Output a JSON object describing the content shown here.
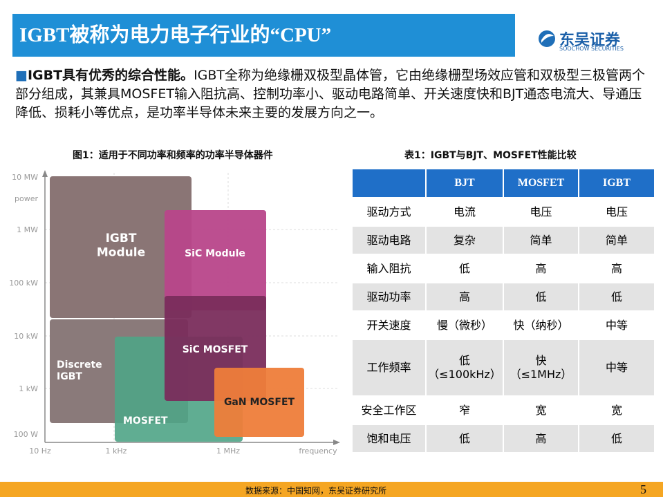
{
  "header": {
    "title": "IGBT被称为电力电子行业的“CPU”",
    "logo_name": "东吴证券",
    "logo_sub": "SOOCHOW SECURITIES"
  },
  "intro": {
    "lead": "IGBT具有优秀的综合性能。",
    "text": "IGBT全称为绝缘栅双极型晶体管，它由绝缘栅型场效应管和双极型三极管两个部分组成，其兼具MOSFET输入阻抗高、控制功率小、驱动电路简单、开关速度快和BJT通态电流大、导通压降低、损耗小等优点，是功率半导体未来主要的发展方向之一。"
  },
  "figure": {
    "caption": "图1：适用于不同功率和频率的功率半导体器件",
    "y_labels": [
      "10 MW",
      "power",
      "1 MW",
      "100 kW",
      "10 kW",
      "1 kW",
      "100 W"
    ],
    "x_labels": [
      "10 Hz",
      "1 kHz",
      "1 MHz",
      "frequency"
    ],
    "regions": [
      "IGBT\nModule",
      "Discrete\nIGBT",
      "MOSFET",
      "SiC Module",
      "SiC MOSFET",
      "GaN MOSFET"
    ]
  },
  "table": {
    "caption": "表1：IGBT与BJT、MOSFET性能比较",
    "header": [
      "BJT",
      "MOSFET",
      "IGBT"
    ],
    "rows": [
      [
        "驱动方式",
        "电流",
        "电压",
        "电压"
      ],
      [
        "驱动电路",
        "复杂",
        "简单",
        "简单"
      ],
      [
        "输入阻抗",
        "低",
        "高",
        "高"
      ],
      [
        "驱动功率",
        "高",
        "低",
        "低"
      ],
      [
        "开关速度",
        "慢（微秒）",
        "快（纳秒）",
        "中等"
      ],
      [
        "工作频率",
        "低\n（≤100kHz）",
        "快\n（≤1MHz）",
        "中等"
      ],
      [
        "安全工作区",
        "窄",
        "宽",
        "宽"
      ],
      [
        "饱和电压",
        "低",
        "高",
        "低"
      ]
    ]
  },
  "footer": {
    "source": "数据来源：中国知网，东吴证券研究所",
    "page": "5"
  }
}
